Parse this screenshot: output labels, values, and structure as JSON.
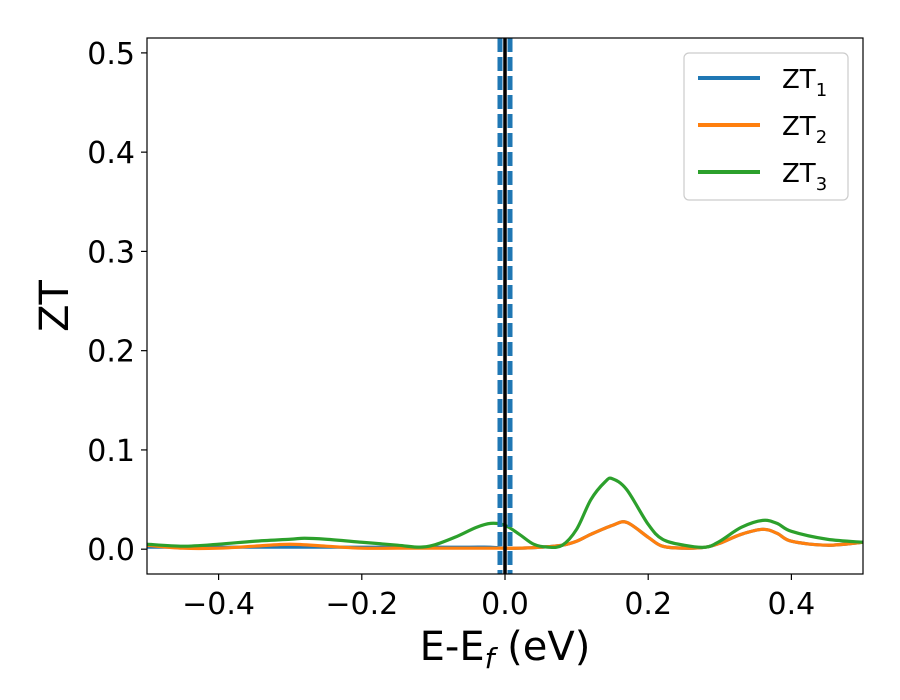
{
  "chart_data": {
    "type": "line",
    "xlabel": "E-E_f (eV)",
    "ylabel": "ZT",
    "xlim": [
      -0.5,
      0.5
    ],
    "ylim": [
      -0.025,
      0.515
    ],
    "xticks": [
      -0.4,
      -0.2,
      0.0,
      0.2,
      0.4
    ],
    "xtick_labels": [
      "−0.4",
      "−0.2",
      "0.0",
      "0.2",
      "0.4"
    ],
    "yticks": [
      0.0,
      0.1,
      0.2,
      0.3,
      0.4,
      0.5
    ],
    "ytick_labels": [
      "0.0",
      "0.1",
      "0.2",
      "0.3",
      "0.4",
      "0.5"
    ],
    "grid": false,
    "legend_position": "upper right",
    "series": [
      {
        "name": "ZT1",
        "name_base": "ZT",
        "name_sub": "1",
        "color": "#1f77b4",
        "x": [
          -0.5,
          -0.45,
          -0.4,
          -0.35,
          -0.3,
          -0.25,
          -0.2,
          -0.15,
          -0.1,
          -0.05,
          -0.02,
          0.0,
          0.02,
          0.05,
          0.08,
          0.1,
          0.12,
          0.15,
          0.17,
          0.2,
          0.22,
          0.25,
          0.28,
          0.3,
          0.33,
          0.36,
          0.38,
          0.4,
          0.45,
          0.5
        ],
        "y": [
          0.002,
          0.002,
          0.002,
          0.002,
          0.002,
          0.002,
          0.002,
          0.002,
          0.002,
          0.002,
          0.002,
          0.001,
          0.001,
          0.002,
          0.004,
          0.008,
          0.015,
          0.024,
          0.027,
          0.012,
          0.003,
          0.001,
          0.002,
          0.006,
          0.015,
          0.02,
          0.016,
          0.008,
          0.004,
          0.007
        ]
      },
      {
        "name": "ZT2",
        "name_base": "ZT",
        "name_sub": "2",
        "color": "#ff7f0e",
        "x": [
          -0.5,
          -0.45,
          -0.4,
          -0.35,
          -0.3,
          -0.25,
          -0.2,
          -0.15,
          -0.1,
          -0.05,
          -0.02,
          0.0,
          0.02,
          0.05,
          0.08,
          0.1,
          0.12,
          0.15,
          0.17,
          0.2,
          0.22,
          0.25,
          0.28,
          0.3,
          0.33,
          0.36,
          0.38,
          0.4,
          0.45,
          0.5
        ],
        "y": [
          0.004,
          0.001,
          0.001,
          0.003,
          0.005,
          0.003,
          0.001,
          0.001,
          0.001,
          0.001,
          0.001,
          0.001,
          0.001,
          0.002,
          0.004,
          0.008,
          0.015,
          0.024,
          0.027,
          0.012,
          0.003,
          0.001,
          0.002,
          0.006,
          0.015,
          0.02,
          0.016,
          0.008,
          0.004,
          0.007
        ]
      },
      {
        "name": "ZT3",
        "name_base": "ZT",
        "name_sub": "3",
        "color": "#2ca02c",
        "x": [
          -0.5,
          -0.45,
          -0.4,
          -0.35,
          -0.3,
          -0.28,
          -0.25,
          -0.2,
          -0.15,
          -0.12,
          -0.1,
          -0.07,
          -0.04,
          -0.02,
          0.0,
          0.02,
          0.04,
          0.06,
          0.08,
          0.1,
          0.12,
          0.14,
          0.15,
          0.17,
          0.2,
          0.22,
          0.25,
          0.28,
          0.3,
          0.33,
          0.36,
          0.38,
          0.4,
          0.45,
          0.5
        ],
        "y": [
          0.005,
          0.003,
          0.005,
          0.008,
          0.01,
          0.011,
          0.01,
          0.007,
          0.004,
          0.002,
          0.004,
          0.012,
          0.022,
          0.026,
          0.024,
          0.015,
          0.005,
          0.002,
          0.004,
          0.02,
          0.05,
          0.068,
          0.071,
          0.06,
          0.025,
          0.01,
          0.004,
          0.002,
          0.008,
          0.022,
          0.029,
          0.026,
          0.018,
          0.01,
          0.007
        ]
      }
    ],
    "vlines": [
      {
        "x": 0.0,
        "style": "solid",
        "color": "#000000"
      },
      {
        "x": -0.007,
        "style": "dashed",
        "color": "#1f77b4"
      },
      {
        "x": 0.007,
        "style": "dashed",
        "color": "#1f77b4"
      }
    ]
  }
}
